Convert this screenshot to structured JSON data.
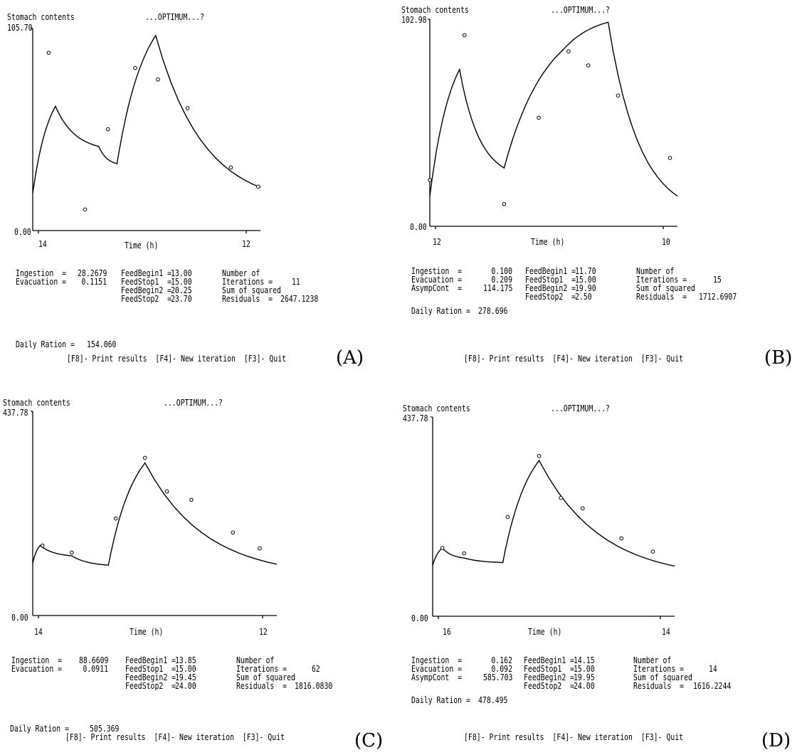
{
  "common": {
    "title": "Stomach contents",
    "optimum": "...OPTIMUM...?",
    "xlabel": "Time (h)",
    "menu": "[F8]- Print results  [F4]- New iteration  [F3]- Quit",
    "lbl_ingestion": "Ingestion  =",
    "lbl_evacuation": "Evacuation =",
    "lbl_asymp": "AsympCont  =",
    "lbl_fb1": "FeedBegin1 =",
    "lbl_fs1": "FeedStop1  =",
    "lbl_fb2": "FeedBegin2 =",
    "lbl_fs2": "FeedStop2  =",
    "lbl_number_of": "Number of",
    "lbl_iterations": "Iterations =",
    "lbl_sum_sq": "Sum of squared",
    "lbl_residuals": "Residuals  =",
    "lbl_daily": "Daily Ration ="
  },
  "panels": [
    {
      "label": "(A)",
      "ymax_label": "105.70",
      "ymin_label": "0.00",
      "xtick_left": "14",
      "xtick_right": "12",
      "ingestion": "28.2679",
      "evacuation": "0.1151",
      "asymp": "",
      "fb1": "13.00",
      "fs1": "15.00",
      "fb2": "20.25",
      "fs2": "23.70",
      "iterations": "11",
      "residuals": "2647.1238",
      "daily": "154.060"
    },
    {
      "label": "(B)",
      "ymax_label": "102.98",
      "ymin_label": "0.00",
      "xtick_left": "12",
      "xtick_right": "10",
      "ingestion": "0.100",
      "evacuation": "0.209",
      "asymp": "114.175",
      "fb1": "11.70",
      "fs1": "15.00",
      "fb2": "19.90",
      "fs2": "2.50",
      "iterations": "15",
      "residuals": "1712.6907",
      "daily": "278.696"
    },
    {
      "label": "(C)",
      "ymax_label": "437.78",
      "ymin_label": "0.00",
      "xtick_left": "14",
      "xtick_right": "12",
      "ingestion": "88.6609",
      "evacuation": "0.0911",
      "asymp": "",
      "fb1": "13.85",
      "fs1": "15.00",
      "fb2": "19.45",
      "fs2": "24.00",
      "iterations": "62",
      "residuals": "1816.0830",
      "daily": "505.369"
    },
    {
      "label": "(D)",
      "ymax_label": "437.78",
      "ymin_label": "0.00",
      "xtick_left": "16",
      "xtick_right": "14",
      "ingestion": "0.162",
      "evacuation": "0.092",
      "asymp": "585.703",
      "fb1": "14.15",
      "fs1": "15.00",
      "fb2": "19.95",
      "fs2": "24.00",
      "iterations": "14",
      "residuals": "1616.2244",
      "daily": "478.495"
    }
  ],
  "chart_data": [
    {
      "type": "line",
      "title": "Stomach contents",
      "xlabel": "Time (h)",
      "ylim": [
        0,
        105.7
      ],
      "series": [
        {
          "style": "fitted",
          "points": [
            [
              0,
              19.5
            ],
            [
              0.1,
              65
            ],
            [
              0.29,
              44
            ],
            [
              0.37,
              35
            ],
            [
              0.54,
              102
            ],
            [
              1,
              22.5
            ]
          ]
        },
        {
          "style": "observed",
          "points": [
            [
              0.07,
              93
            ],
            [
              0.23,
              11
            ],
            [
              0.33,
              53
            ],
            [
              0.45,
              85
            ],
            [
              0.55,
              79
            ],
            [
              0.68,
              64
            ],
            [
              0.87,
              33
            ],
            [
              0.99,
              23
            ]
          ]
        }
      ]
    },
    {
      "type": "line",
      "title": "Stomach contents",
      "xlabel": "Time (h)",
      "ylim": [
        0,
        102.98
      ],
      "series": [
        {
          "style": "fitted",
          "points": [
            [
              0,
              15
            ],
            [
              0.12,
              78
            ],
            [
              0.3,
              29
            ],
            [
              0.54,
              88
            ],
            [
              0.72,
              101.5
            ],
            [
              1,
              15
            ]
          ]
        },
        {
          "style": "observed",
          "points": [
            [
              0,
              23
            ],
            [
              0.14,
              95
            ],
            [
              0.3,
              11
            ],
            [
              0.44,
              54
            ],
            [
              0.56,
              87
            ],
            [
              0.64,
              80
            ],
            [
              0.76,
              65
            ],
            [
              0.97,
              34
            ]
          ]
        }
      ]
    },
    {
      "type": "line",
      "title": "Stomach contents",
      "xlabel": "Time (h)",
      "ylim": [
        0,
        437.78
      ],
      "series": [
        {
          "style": "fitted",
          "points": [
            [
              0,
              112
            ],
            [
              0.03,
              150
            ],
            [
              0.16,
              128
            ],
            [
              0.31,
              108
            ],
            [
              0.46,
              327
            ],
            [
              1,
              110
            ]
          ]
        },
        {
          "style": "observed",
          "points": [
            [
              0.04,
              150
            ],
            [
              0.16,
              135
            ],
            [
              0.34,
              208
            ],
            [
              0.46,
              338
            ],
            [
              0.55,
              266
            ],
            [
              0.65,
              248
            ],
            [
              0.82,
              178
            ],
            [
              0.93,
              144
            ]
          ]
        }
      ]
    },
    {
      "type": "line",
      "title": "Stomach contents",
      "xlabel": "Time (h)",
      "ylim": [
        0,
        437.78
      ],
      "series": [
        {
          "style": "fitted",
          "points": [
            [
              0,
              112
            ],
            [
              0.04,
              150
            ],
            [
              0.13,
              128
            ],
            [
              0.29,
              118
            ],
            [
              0.44,
              342
            ],
            [
              1,
              110
            ]
          ]
        },
        {
          "style": "observed",
          "points": [
            [
              0.04,
              150
            ],
            [
              0.13,
              138
            ],
            [
              0.31,
              218
            ],
            [
              0.44,
              352
            ],
            [
              0.53,
              260
            ],
            [
              0.62,
              237
            ],
            [
              0.78,
              171
            ],
            [
              0.91,
              142
            ]
          ]
        }
      ]
    }
  ]
}
